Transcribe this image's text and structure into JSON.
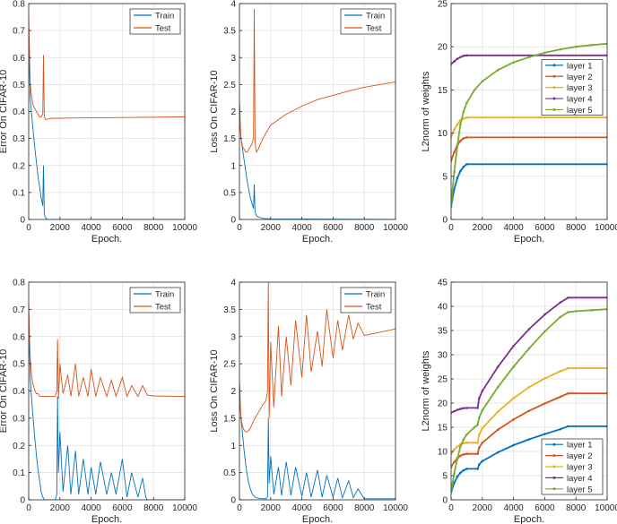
{
  "colors": {
    "train": "#0072BD",
    "test": "#D95319",
    "layer1": "#0072BD",
    "layer2": "#D95319",
    "layer3": "#EDB120",
    "layer4": "#7E2F8E",
    "layer5": "#77AC30",
    "axis": "#262626",
    "grid": "#dedede"
  },
  "chart_data": [
    {
      "type": "line",
      "xlabel": "Epoch.",
      "ylabel": "Error On CIFAR-10",
      "xlim": [
        0,
        10000
      ],
      "ylim": [
        0,
        0.8
      ],
      "xticks": [
        0,
        2000,
        4000,
        6000,
        8000,
        10000
      ],
      "yticks": [
        0,
        0.1,
        0.2,
        0.3,
        0.4,
        0.5,
        0.6,
        0.7,
        0.8
      ],
      "grid": true,
      "legend": "top-right",
      "series": [
        {
          "name": "Train",
          "x": [
            0,
            50,
            100,
            200,
            300,
            400,
            500,
            600,
            700,
            800,
            900,
            950,
            1000,
            1050,
            1100,
            1200,
            10000
          ],
          "y": [
            0.7,
            0.55,
            0.45,
            0.38,
            0.32,
            0.26,
            0.21,
            0.16,
            0.12,
            0.08,
            0.05,
            0.2,
            0.02,
            0.01,
            0.005,
            0,
            0
          ]
        },
        {
          "name": "Test",
          "x": [
            0,
            50,
            100,
            200,
            300,
            400,
            500,
            600,
            700,
            800,
            900,
            950,
            1000,
            1050,
            1100,
            1200,
            1500,
            2000,
            3000,
            5000,
            10000
          ],
          "y": [
            0.75,
            0.62,
            0.5,
            0.45,
            0.42,
            0.41,
            0.4,
            0.39,
            0.38,
            0.38,
            0.39,
            0.61,
            0.38,
            0.375,
            0.37,
            0.372,
            0.375,
            0.375,
            0.376,
            0.377,
            0.38
          ]
        }
      ]
    },
    {
      "type": "line",
      "xlabel": "Epoch.",
      "ylabel": "Loss On CIFAR-10",
      "xlim": [
        0,
        10000
      ],
      "ylim": [
        0,
        4
      ],
      "xticks": [
        0,
        2000,
        4000,
        6000,
        8000,
        10000
      ],
      "yticks": [
        0,
        0.5,
        1,
        1.5,
        2,
        2.5,
        3,
        3.5,
        4
      ],
      "grid": true,
      "legend": "top-right",
      "series": [
        {
          "name": "Train",
          "x": [
            0,
            50,
            100,
            200,
            300,
            400,
            500,
            600,
            700,
            800,
            900,
            950,
            1000,
            1050,
            1100,
            1200,
            1500,
            2000,
            10000
          ],
          "y": [
            2.2,
            1.7,
            1.5,
            1.3,
            1.1,
            0.9,
            0.7,
            0.55,
            0.4,
            0.3,
            0.2,
            0.65,
            0.15,
            0.1,
            0.07,
            0.05,
            0.02,
            0.01,
            0
          ]
        },
        {
          "name": "Test",
          "x": [
            0,
            50,
            100,
            200,
            300,
            400,
            500,
            600,
            700,
            800,
            900,
            950,
            1000,
            1050,
            1100,
            1200,
            1500,
            2000,
            3000,
            4000,
            5000,
            6000,
            7000,
            8000,
            9000,
            10000
          ],
          "y": [
            2.2,
            1.8,
            1.5,
            1.35,
            1.3,
            1.25,
            1.25,
            1.3,
            1.35,
            1.4,
            1.5,
            3.9,
            1.45,
            1.3,
            1.25,
            1.3,
            1.5,
            1.75,
            1.95,
            2.1,
            2.22,
            2.3,
            2.38,
            2.45,
            2.5,
            2.55
          ]
        }
      ]
    },
    {
      "type": "line",
      "xlabel": "Epoch.",
      "ylabel": "L2norm of weights",
      "xlim": [
        0,
        10000
      ],
      "ylim": [
        0,
        25
      ],
      "xticks": [
        0,
        2000,
        4000,
        6000,
        8000,
        10000
      ],
      "yticks": [
        0,
        5,
        10,
        15,
        20,
        25
      ],
      "grid": true,
      "legend": "right",
      "series": [
        {
          "name": "layer 1",
          "x": [
            0,
            200,
            400,
            600,
            800,
            1000,
            10000
          ],
          "y": [
            1.5,
            3.5,
            4.8,
            5.6,
            6.1,
            6.4,
            6.4
          ]
        },
        {
          "name": "layer 2",
          "x": [
            0,
            200,
            400,
            600,
            800,
            1000,
            10000
          ],
          "y": [
            6.8,
            7.8,
            8.6,
            9.1,
            9.4,
            9.5,
            9.5
          ]
        },
        {
          "name": "layer 3",
          "x": [
            0,
            200,
            400,
            600,
            800,
            1000,
            10000
          ],
          "y": [
            9.5,
            10.4,
            11.0,
            11.5,
            11.7,
            11.8,
            11.8
          ]
        },
        {
          "name": "layer 4",
          "x": [
            0,
            200,
            400,
            600,
            800,
            1000,
            10000
          ],
          "y": [
            18.0,
            18.3,
            18.6,
            18.8,
            18.95,
            19.0,
            19.0
          ]
        },
        {
          "name": "layer 5",
          "x": [
            0,
            100,
            200,
            400,
            600,
            800,
            1000,
            1500,
            2000,
            3000,
            4000,
            5000,
            6000,
            7000,
            8000,
            9000,
            10000
          ],
          "y": [
            1.5,
            3.5,
            5.5,
            8.5,
            11,
            12.5,
            13.5,
            15,
            16,
            17.3,
            18.2,
            18.8,
            19.3,
            19.7,
            20.0,
            20.2,
            20.35
          ]
        }
      ]
    },
    {
      "type": "line",
      "xlabel": "Epoch.",
      "ylabel": "Error On CIFAR-10",
      "xlim": [
        0,
        10000
      ],
      "ylim": [
        0,
        0.8
      ],
      "xticks": [
        0,
        2000,
        4000,
        6000,
        8000,
        10000
      ],
      "yticks": [
        0,
        0.1,
        0.2,
        0.3,
        0.4,
        0.5,
        0.6,
        0.7,
        0.8
      ],
      "grid": true,
      "legend": "top-right",
      "series": [
        {
          "name": "Train",
          "x": [
            0,
            50,
            100,
            200,
            300,
            400,
            500,
            600,
            700,
            800,
            900,
            1000,
            1200,
            1700,
            1800,
            1850,
            1900,
            2000,
            2200,
            2500,
            2700,
            3000,
            3200,
            3500,
            3800,
            4000,
            4300,
            4600,
            5000,
            5300,
            5600,
            6000,
            6300,
            6600,
            7000,
            7300,
            7500,
            7600,
            10000
          ],
          "y": [
            0.7,
            0.55,
            0.45,
            0.36,
            0.29,
            0.22,
            0.16,
            0.11,
            0.07,
            0.03,
            0.01,
            0.0,
            0.0,
            0.0,
            0.02,
            0.38,
            0.1,
            0.25,
            0.03,
            0.2,
            0.02,
            0.18,
            0.02,
            0.15,
            0.02,
            0.12,
            0.02,
            0.14,
            0.02,
            0.1,
            0.02,
            0.15,
            0.01,
            0.1,
            0.01,
            0.08,
            0.01,
            0,
            0
          ]
        },
        {
          "name": "Test",
          "x": [
            0,
            50,
            100,
            200,
            300,
            400,
            500,
            600,
            700,
            800,
            900,
            1000,
            1200,
            1500,
            1700,
            1800,
            1850,
            1900,
            2000,
            2200,
            2500,
            2700,
            3000,
            3200,
            3500,
            3800,
            4000,
            4300,
            4600,
            5000,
            5300,
            5600,
            6000,
            6300,
            6600,
            7000,
            7300,
            7600,
            8000,
            10000
          ],
          "y": [
            0.72,
            0.6,
            0.52,
            0.45,
            0.42,
            0.4,
            0.39,
            0.39,
            0.38,
            0.38,
            0.38,
            0.38,
            0.38,
            0.38,
            0.38,
            0.4,
            0.59,
            0.37,
            0.5,
            0.39,
            0.46,
            0.38,
            0.5,
            0.38,
            0.45,
            0.38,
            0.48,
            0.38,
            0.45,
            0.38,
            0.44,
            0.38,
            0.45,
            0.38,
            0.42,
            0.38,
            0.42,
            0.385,
            0.382,
            0.38
          ]
        }
      ]
    },
    {
      "type": "line",
      "xlabel": "Epoch.",
      "ylabel": "Loss On CIFAR-10",
      "xlim": [
        0,
        10000
      ],
      "ylim": [
        0,
        4
      ],
      "xticks": [
        0,
        2000,
        4000,
        6000,
        8000,
        10000
      ],
      "yticks": [
        0,
        0.5,
        1,
        1.5,
        2,
        2.5,
        3,
        3.5,
        4
      ],
      "grid": true,
      "legend": "top-right",
      "series": [
        {
          "name": "Train",
          "x": [
            0,
            50,
            100,
            200,
            300,
            400,
            500,
            600,
            700,
            800,
            900,
            1000,
            1200,
            1500,
            1700,
            1800,
            1850,
            1900,
            2000,
            2200,
            2500,
            2700,
            3000,
            3300,
            3600,
            4000,
            4300,
            4600,
            5000,
            5300,
            5600,
            6000,
            6300,
            6600,
            7000,
            7300,
            7600,
            8000,
            10000
          ],
          "y": [
            2.2,
            1.7,
            1.5,
            1.2,
            0.9,
            0.65,
            0.45,
            0.3,
            0.2,
            0.12,
            0.08,
            0.05,
            0.03,
            0.02,
            0.02,
            0.05,
            1.5,
            0.3,
            0.8,
            0.1,
            0.6,
            0.08,
            0.7,
            0.08,
            0.6,
            0.06,
            0.5,
            0.05,
            0.55,
            0.05,
            0.45,
            0.05,
            0.4,
            0.04,
            0.35,
            0.04,
            0.2,
            0.02,
            0.02
          ]
        },
        {
          "name": "Test",
          "x": [
            0,
            50,
            100,
            200,
            300,
            400,
            500,
            600,
            700,
            800,
            900,
            1000,
            1200,
            1500,
            1700,
            1800,
            1850,
            1900,
            2000,
            2200,
            2500,
            2700,
            3000,
            3300,
            3600,
            4000,
            4300,
            4600,
            5000,
            5300,
            5600,
            6000,
            6300,
            6600,
            7000,
            7300,
            7600,
            8000,
            9000,
            10000
          ],
          "y": [
            2.2,
            1.8,
            1.5,
            1.35,
            1.28,
            1.25,
            1.25,
            1.28,
            1.32,
            1.38,
            1.45,
            1.5,
            1.6,
            1.75,
            1.82,
            2.0,
            4.0,
            1.5,
            2.9,
            1.7,
            3.2,
            1.9,
            3.0,
            2.1,
            3.3,
            2.25,
            3.4,
            2.35,
            3.1,
            2.45,
            3.5,
            2.6,
            3.3,
            2.75,
            3.4,
            2.95,
            3.25,
            3.02,
            3.08,
            3.14
          ]
        }
      ]
    },
    {
      "type": "line",
      "xlabel": "Epoch.",
      "ylabel": "L2norm of weights",
      "xlim": [
        0,
        10000
      ],
      "ylim": [
        0,
        45
      ],
      "xticks": [
        0,
        2000,
        4000,
        6000,
        8000,
        10000
      ],
      "yticks": [
        0,
        5,
        10,
        15,
        20,
        25,
        30,
        35,
        40,
        45
      ],
      "grid": true,
      "legend": "bottom-right",
      "series": [
        {
          "name": "layer 1",
          "x": [
            0,
            200,
            400,
            600,
            800,
            1000,
            1700,
            1800,
            2000,
            3000,
            4000,
            5000,
            6000,
            7000,
            7500,
            10000
          ],
          "y": [
            1.5,
            3.5,
            4.8,
            5.6,
            6.1,
            6.4,
            6.4,
            7.3,
            8.0,
            9.8,
            11.3,
            12.5,
            13.6,
            14.6,
            15.2,
            15.2
          ]
        },
        {
          "name": "layer 2",
          "x": [
            0,
            200,
            400,
            600,
            800,
            1000,
            1700,
            1800,
            2000,
            3000,
            4000,
            5000,
            6000,
            7000,
            7500,
            10000
          ],
          "y": [
            6.8,
            7.8,
            8.6,
            9.1,
            9.4,
            9.5,
            9.5,
            10.8,
            11.8,
            14.5,
            16.6,
            18.4,
            19.9,
            21.3,
            22.0,
            22.0
          ]
        },
        {
          "name": "layer 3",
          "x": [
            0,
            200,
            400,
            600,
            800,
            1000,
            1700,
            1800,
            2000,
            3000,
            4000,
            5000,
            6000,
            7000,
            7500,
            10000
          ],
          "y": [
            9.5,
            10.4,
            11.0,
            11.5,
            11.7,
            11.8,
            11.8,
            13.5,
            14.8,
            18.2,
            21.0,
            23.3,
            25.1,
            26.6,
            27.2,
            27.2
          ]
        },
        {
          "name": "layer 4",
          "x": [
            0,
            200,
            400,
            600,
            800,
            1000,
            1700,
            1800,
            2000,
            3000,
            4000,
            5000,
            6000,
            7000,
            7500,
            10000
          ],
          "y": [
            18.0,
            18.3,
            18.6,
            18.8,
            18.95,
            19.0,
            19.0,
            21.0,
            22.5,
            27.5,
            31.8,
            35.3,
            38.3,
            40.8,
            41.8,
            41.8
          ]
        },
        {
          "name": "layer 5",
          "x": [
            0,
            100,
            200,
            400,
            600,
            800,
            1000,
            1500,
            1700,
            1800,
            2000,
            3000,
            4000,
            5000,
            6000,
            7000,
            7500,
            8000,
            9000,
            10000
          ],
          "y": [
            1.5,
            3.5,
            5.5,
            8.5,
            11,
            12.5,
            13.5,
            15.0,
            15.5,
            17.0,
            18.5,
            23.3,
            27.5,
            31.3,
            34.8,
            37.8,
            38.8,
            39.0,
            39.2,
            39.4
          ]
        }
      ]
    }
  ]
}
